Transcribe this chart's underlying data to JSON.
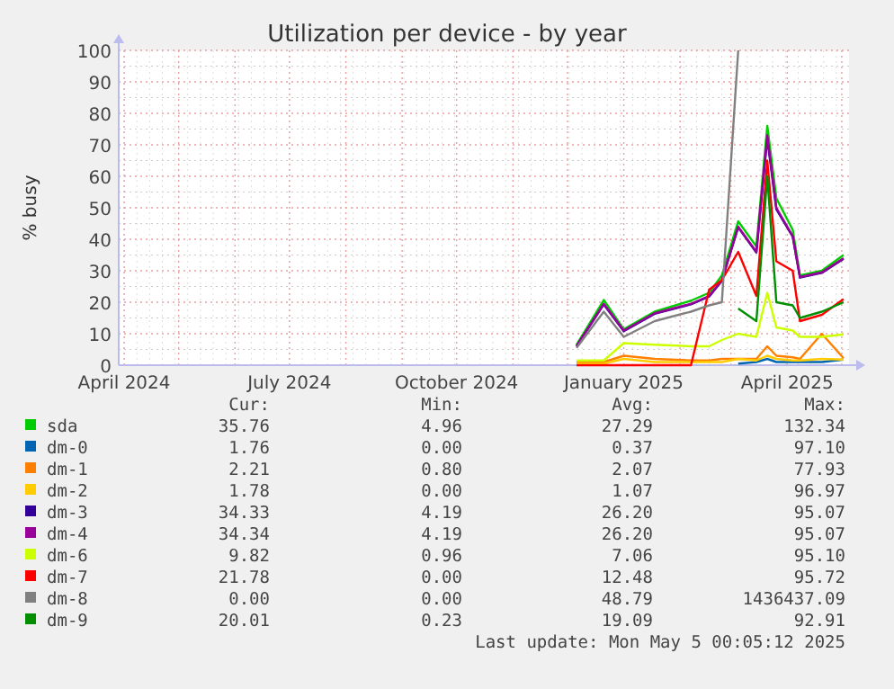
{
  "chart_data": {
    "type": "line",
    "title": "Utilization per device - by year",
    "ylabel": "% busy",
    "x": [
      "2024-12-06",
      "2024-12-21",
      "2025-01-01",
      "2025-01-18",
      "2025-02-07",
      "2025-02-17",
      "2025-02-24",
      "2025-03-05",
      "2025-03-15",
      "2025-03-21",
      "2025-03-26",
      "2025-04-04",
      "2025-04-08",
      "2025-04-20",
      "2025-05-02"
    ],
    "xlim": [
      "2024-03-29",
      "2025-05-05"
    ],
    "xticks": [
      {
        "value": "2024-04-01",
        "label": "April 2024"
      },
      {
        "value": "2024-07-01",
        "label": "July 2024"
      },
      {
        "value": "2024-10-01",
        "label": "October 2024"
      },
      {
        "value": "2025-01-01",
        "label": "January 2025"
      },
      {
        "value": "2025-04-01",
        "label": "April 2025"
      }
    ],
    "ylim": [
      0,
      100
    ],
    "yticks": [
      0,
      10,
      20,
      30,
      40,
      50,
      60,
      70,
      80,
      90,
      100
    ],
    "grid": true,
    "legend": "bottom",
    "series": [
      {
        "name": "sda",
        "color": "#00cc00",
        "values": [
          6.5,
          20.7,
          11.4,
          17,
          20.5,
          23,
          28.5,
          45.7,
          37.7,
          76,
          53,
          43,
          28.5,
          30,
          35
        ]
      },
      {
        "name": "dm-0",
        "color": "#0066b3",
        "values": [
          null,
          null,
          null,
          null,
          null,
          null,
          null,
          0.5,
          1,
          2,
          1,
          1,
          1,
          1,
          1.8
        ]
      },
      {
        "name": "dm-1",
        "color": "#ff8000",
        "values": [
          1,
          1,
          3,
          2,
          1.5,
          1.5,
          2,
          2,
          2,
          6,
          3,
          2.5,
          2,
          10,
          2.2
        ]
      },
      {
        "name": "dm-2",
        "color": "#ffcc00",
        "values": [
          0.5,
          0.5,
          2,
          1,
          1,
          1,
          1,
          2,
          1.5,
          3,
          2,
          1.5,
          1.5,
          2,
          1.8
        ]
      },
      {
        "name": "dm-3",
        "color": "#330099",
        "values": [
          6,
          19.3,
          10.8,
          16.3,
          19.3,
          21.8,
          26.8,
          43.8,
          35.8,
          72,
          49.5,
          40.8,
          27.8,
          29.3,
          33.8
        ]
      },
      {
        "name": "dm-4",
        "color": "#990099",
        "values": [
          6,
          19.5,
          11,
          16.5,
          19.5,
          22,
          27,
          44,
          36,
          73,
          50,
          41,
          28,
          29.5,
          34
        ]
      },
      {
        "name": "dm-6",
        "color": "#ccff00",
        "values": [
          1.5,
          1.5,
          7,
          6.5,
          6,
          6,
          8,
          10,
          9,
          23,
          12,
          11,
          9,
          9,
          9.8
        ]
      },
      {
        "name": "dm-7",
        "color": "#ff0000",
        "values": [
          0,
          0,
          0,
          0,
          0,
          24,
          27,
          36,
          22,
          65,
          33,
          30,
          14,
          16,
          21
        ]
      },
      {
        "name": "dm-8",
        "color": "#808080",
        "values": [
          5.5,
          17,
          9,
          14,
          17,
          19,
          20,
          100,
          null,
          null,
          null,
          null,
          null,
          null,
          null
        ]
      },
      {
        "name": "dm-9",
        "color": "#008f00",
        "values": [
          null,
          null,
          null,
          null,
          null,
          null,
          null,
          18,
          14,
          60,
          20,
          19,
          15,
          17,
          20
        ]
      }
    ],
    "annotations": [
      "Cur:",
      "Min:",
      "Avg:",
      "Max:",
      "35.76",
      "4.96",
      "27.29",
      "132.34",
      "1.76",
      "0.00",
      "0.37",
      "97.10",
      "2.21",
      "0.80",
      "2.07",
      "77.93",
      "1.78",
      "0.00",
      "1.07",
      "96.97",
      "34.33",
      "4.19",
      "26.20",
      "95.07",
      "34.34",
      "4.19",
      "26.20",
      "95.07",
      "9.82",
      "0.96",
      "7.06",
      "95.10",
      "21.78",
      "0.00",
      "12.48",
      "95.72",
      "0.00",
      "0.00",
      "48.79",
      "1436437.09",
      "20.01",
      "0.23",
      "19.09",
      "92.91",
      "Last update: Mon May  5 00:05:12 2025"
    ]
  }
}
